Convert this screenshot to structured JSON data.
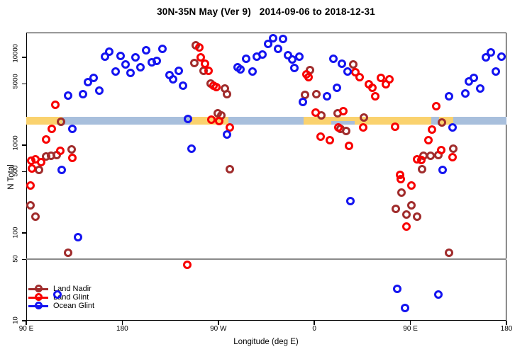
{
  "title": "30N-35N May (Ver 9)   2014-09-06 to 2018-12-31",
  "axes": {
    "x": {
      "label": "Longitude (deg E)",
      "range": [
        90,
        540
      ],
      "ticks": [
        {
          "lon": 90,
          "label": "90 E"
        },
        {
          "lon": 180,
          "label": "180"
        },
        {
          "lon": 270,
          "label": "90 W"
        },
        {
          "lon": 360,
          "label": "0"
        },
        {
          "lon": 450,
          "label": "90 E"
        },
        {
          "lon": 540,
          "label": "180"
        }
      ]
    },
    "y": {
      "label": "N Total",
      "scale": "log",
      "range": [
        10,
        20000
      ],
      "ticks": [
        {
          "v": 10,
          "label": "10"
        },
        {
          "v": 50,
          "label": "50"
        },
        {
          "v": 100,
          "label": "100"
        },
        {
          "v": 500,
          "label": "500"
        },
        {
          "v": 1000,
          "label": "1000"
        },
        {
          "v": 5000,
          "label": "5000"
        },
        {
          "v": 10000,
          "label": "10000"
        }
      ]
    }
  },
  "colors": {
    "land_nadir": "#A02C2C",
    "land_glint": "#F80000",
    "ocean_glint": "#1414F0",
    "band_blue": "#A8BFDC",
    "band_yellow": "#FAD26E",
    "gray_line": "#8A8A8A"
  },
  "reference_line": {
    "value": 50,
    "color": "#8A8A8A"
  },
  "reference_band": {
    "value_range": [
      1700,
      2100
    ],
    "base_color": "#A8BFDC",
    "highlight_color": "#FAD26E",
    "yellow_segments": [
      {
        "from": 90,
        "to": 124,
        "half": false
      },
      {
        "from": 243.6,
        "to": 279.5,
        "half": false
      },
      {
        "from": 349.9,
        "to": 376,
        "half": false
      },
      {
        "from": 376,
        "to": 398,
        "half": true
      },
      {
        "from": 398,
        "to": 469.6,
        "half": false
      },
      {
        "from": 476.9,
        "to": 490.2,
        "half": false
      }
    ]
  },
  "legend": {
    "items": [
      {
        "label": "Land Nadir",
        "color": "#A02C2C"
      },
      {
        "label": "Land Glint",
        "color": "#F80000"
      },
      {
        "label": "Ocean Glint",
        "color": "#1414F0"
      }
    ]
  },
  "chart_data": {
    "type": "scatter",
    "x_axis": "Longitude (deg E), axis degrees 90..540 (wraps past 360)",
    "y_axis": "N Total, log scale 10..20000",
    "series": [
      {
        "name": "Land Nadir",
        "color": "#A02C2C",
        "points": [
          [
            122.6,
            1860
          ],
          [
            132.5,
            890
          ],
          [
            118.6,
            770
          ],
          [
            113.3,
            760
          ],
          [
            108.6,
            740
          ],
          [
            102.0,
            525
          ],
          [
            94.0,
            205
          ],
          [
            98.6,
            152
          ],
          [
            129.2,
            60
          ],
          [
            248.9,
            13700
          ],
          [
            247.5,
            8600
          ],
          [
            256.2,
            7000
          ],
          [
            262.8,
            5000
          ],
          [
            276.1,
            4400
          ],
          [
            278.1,
            3800
          ],
          [
            269.5,
            2320
          ],
          [
            272.8,
            2170
          ],
          [
            280.8,
            535
          ],
          [
            355.9,
            7200
          ],
          [
            366.5,
            2200
          ],
          [
            381.8,
            2320
          ],
          [
            384.5,
            1540
          ],
          [
            389.8,
            1460
          ],
          [
            351.2,
            3770
          ],
          [
            361.9,
            3800
          ],
          [
            396.4,
            8300
          ],
          [
            406.4,
            2080
          ],
          [
            436.3,
            188
          ],
          [
            441.6,
            290
          ],
          [
            446.3,
            162
          ],
          [
            450.9,
            205
          ],
          [
            456.2,
            154
          ],
          [
            462.2,
            760
          ],
          [
            468.9,
            760
          ],
          [
            476.2,
            770
          ],
          [
            490.2,
            910
          ],
          [
            486.2,
            60
          ],
          [
            460.9,
            535
          ],
          [
            479.5,
            1820
          ]
        ]
      },
      {
        "name": "Land Glint",
        "color": "#F80000",
        "points": [
          [
            117.3,
            2900
          ],
          [
            113.9,
            1540
          ],
          [
            108.6,
            1170
          ],
          [
            121.9,
            860
          ],
          [
            133.2,
            720
          ],
          [
            98.6,
            690
          ],
          [
            94.7,
            670
          ],
          [
            104.0,
            640
          ],
          [
            95.3,
            545
          ],
          [
            94.0,
            345
          ],
          [
            252.2,
            13000
          ],
          [
            253.5,
            10000
          ],
          [
            257.5,
            8500
          ],
          [
            260.8,
            7000
          ],
          [
            265.5,
            4800
          ],
          [
            268.1,
            4580
          ],
          [
            263.5,
            1960
          ],
          [
            270.8,
            1890
          ],
          [
            280.8,
            1600
          ],
          [
            352.6,
            6400
          ],
          [
            354.6,
            5900
          ],
          [
            361.2,
            2360
          ],
          [
            365.9,
            1260
          ],
          [
            374.5,
            1130
          ],
          [
            387.1,
            2450
          ],
          [
            382.5,
            1600
          ],
          [
            392.4,
            980
          ],
          [
            405.7,
            1600
          ],
          [
            411.1,
            4900
          ],
          [
            414.4,
            4500
          ],
          [
            417.0,
            3570
          ],
          [
            422.4,
            5800
          ],
          [
            427.0,
            4900
          ],
          [
            430.3,
            5600
          ],
          [
            398.4,
            6800
          ],
          [
            402.4,
            6000
          ],
          [
            435.6,
            1630
          ],
          [
            440.9,
            410
          ],
          [
            450.9,
            345
          ],
          [
            446.3,
            119
          ],
          [
            460.2,
            680
          ],
          [
            456.2,
            690
          ],
          [
            466.9,
            1130
          ],
          [
            470.2,
            1510
          ],
          [
            474.2,
            2800
          ],
          [
            478.8,
            880
          ],
          [
            489.5,
            730
          ],
          [
            240.9,
            43
          ],
          [
            440.3,
            460
          ]
        ]
      },
      {
        "name": "Ocean Glint",
        "color": "#1414F0",
        "points": [
          [
            129.2,
            3700
          ],
          [
            143.2,
            3800
          ],
          [
            147.8,
            5200
          ],
          [
            153.2,
            5800
          ],
          [
            158.5,
            4200
          ],
          [
            163.8,
            10200
          ],
          [
            167.8,
            11600
          ],
          [
            173.8,
            6900
          ],
          [
            178.4,
            10400
          ],
          [
            183.1,
            8300
          ],
          [
            187.7,
            6600
          ],
          [
            192.4,
            10000
          ],
          [
            197.0,
            7700
          ],
          [
            202.3,
            12100
          ],
          [
            207.7,
            8800
          ],
          [
            212.3,
            9100
          ],
          [
            217.6,
            12600
          ],
          [
            224.3,
            6300
          ],
          [
            227.6,
            5600
          ],
          [
            232.9,
            7000
          ],
          [
            236.9,
            4800
          ],
          [
            133.2,
            1540
          ],
          [
            241.6,
            2000
          ],
          [
            244.9,
            910
          ],
          [
            123.2,
            525
          ],
          [
            138.5,
            90
          ],
          [
            119.2,
            20
          ],
          [
            278.1,
            1330
          ],
          [
            288.1,
            7700
          ],
          [
            290.7,
            7300
          ],
          [
            296.1,
            9600
          ],
          [
            302.0,
            6900
          ],
          [
            306.0,
            10200
          ],
          [
            311.4,
            10800
          ],
          [
            316.7,
            14200
          ],
          [
            321.3,
            16500
          ],
          [
            326.0,
            12500
          ],
          [
            330.6,
            16200
          ],
          [
            335.3,
            10600
          ],
          [
            339.3,
            9500
          ],
          [
            341.3,
            7600
          ],
          [
            345.9,
            10200
          ],
          [
            349.2,
            3100
          ],
          [
            377.8,
            9600
          ],
          [
            385.8,
            8500
          ],
          [
            391.1,
            6900
          ],
          [
            381.2,
            4500
          ],
          [
            371.9,
            3570
          ],
          [
            393.8,
            230
          ],
          [
            486.2,
            3630
          ],
          [
            501.5,
            3900
          ],
          [
            504.8,
            5300
          ],
          [
            509.4,
            5800
          ],
          [
            515.4,
            4400
          ],
          [
            520.7,
            10000
          ],
          [
            525.4,
            11400
          ],
          [
            530.0,
            6900
          ],
          [
            535.4,
            10200
          ],
          [
            489.5,
            1600
          ],
          [
            480.2,
            525
          ],
          [
            437.6,
            23
          ],
          [
            476.2,
            20
          ],
          [
            444.9,
            14
          ]
        ]
      }
    ]
  }
}
